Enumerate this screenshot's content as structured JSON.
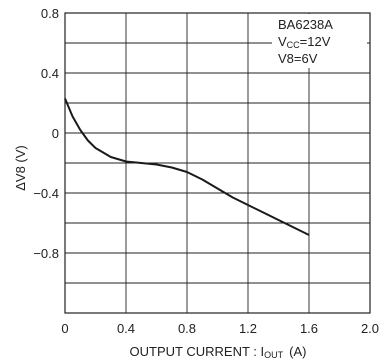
{
  "chart_data": {
    "type": "line",
    "xlabel": "OUTPUT CURRENT : I",
    "xlabel_sub": "OUT",
    "xlabel_unit": "(A)",
    "ylabel": "ΔV8 (V)",
    "xlim": [
      0,
      2.0
    ],
    "ylim": [
      -1.2,
      0.8
    ],
    "x_ticks": [
      "0",
      "0.4",
      "0.8",
      "1.2",
      "1.6",
      "2.0"
    ],
    "x_tick_values": [
      0,
      0.4,
      0.8,
      1.2,
      1.6,
      2.0
    ],
    "y_ticks": [
      "0.8",
      "0.4",
      "0",
      "-0.4",
      "-0.8"
    ],
    "y_tick_values": [
      0.8,
      0.4,
      0,
      -0.4,
      -0.8
    ],
    "grid": true,
    "legend_lines": [
      {
        "text": "BA6238A",
        "sub": "",
        "rest": ""
      },
      {
        "text": "V",
        "sub": "CC",
        "rest": "=12V"
      },
      {
        "text": "V8=6V",
        "sub": "",
        "rest": ""
      }
    ],
    "series": [
      {
        "x": [
          0,
          0.05,
          0.1,
          0.15,
          0.2,
          0.3,
          0.4,
          0.5,
          0.6,
          0.7,
          0.8,
          0.9,
          1.0,
          1.1,
          1.2,
          1.3,
          1.4,
          1.5,
          1.6
        ],
        "y": [
          0.23,
          0.11,
          0.02,
          -0.05,
          -0.1,
          -0.16,
          -0.19,
          -0.2,
          -0.21,
          -0.23,
          -0.26,
          -0.31,
          -0.37,
          -0.43,
          -0.48,
          -0.53,
          -0.58,
          -0.63,
          -0.68
        ]
      }
    ]
  }
}
